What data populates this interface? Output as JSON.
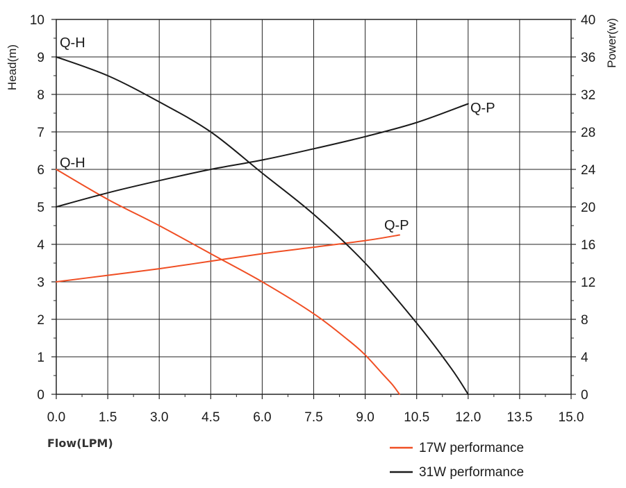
{
  "chart_data": {
    "type": "line",
    "xlabel": "Flow(LPM)",
    "ylabel_left": "Head(m)",
    "ylabel_right": "Power(w)",
    "xlim": [
      0,
      15
    ],
    "ylim_left": [
      0,
      10
    ],
    "ylim_right": [
      0,
      40
    ],
    "x_ticks": [
      "0.0",
      "1.5",
      "3.0",
      "4.5",
      "6.0",
      "7.5",
      "9.0",
      "10.5",
      "12.0",
      "13.5",
      "15.0"
    ],
    "y_ticks_left": [
      "0",
      "1",
      "2",
      "3",
      "4",
      "5",
      "6",
      "7",
      "8",
      "9",
      "10"
    ],
    "y_ticks_right": [
      "0",
      "4",
      "8",
      "12",
      "16",
      "20",
      "24",
      "28",
      "32",
      "36",
      "40"
    ],
    "grid": true,
    "legend_position": "bottom-right",
    "series": [
      {
        "name": "17W performance",
        "color": "#f04e23",
        "curves": [
          {
            "label": "Q-H",
            "axis": "left",
            "x": [
              0,
              1.5,
              3.0,
              4.5,
              6.0,
              7.5,
              8.5,
              9.0,
              9.5,
              9.8,
              10.0
            ],
            "y": [
              6.0,
              5.2,
              4.5,
              3.75,
              3.0,
              2.15,
              1.45,
              1.05,
              0.55,
              0.25,
              0.0
            ]
          },
          {
            "label": "Q-P",
            "axis": "right",
            "x": [
              0,
              1.5,
              3.0,
              4.5,
              6.0,
              7.5,
              9.0,
              10.0
            ],
            "y": [
              12.0,
              12.7,
              13.4,
              14.2,
              15.0,
              15.7,
              16.4,
              17.0
            ]
          }
        ]
      },
      {
        "name": "31W performance",
        "color": "#1a1a1a",
        "curves": [
          {
            "label": "Q-H",
            "axis": "left",
            "x": [
              0,
              1.5,
              3.0,
              4.5,
              6.0,
              7.5,
              9.0,
              10.5,
              11.5,
              12.0
            ],
            "y": [
              9.0,
              8.5,
              7.8,
              7.0,
              5.9,
              4.8,
              3.5,
              1.9,
              0.7,
              0.0
            ]
          },
          {
            "label": "Q-P",
            "axis": "right",
            "x": [
              0,
              1.5,
              3.0,
              4.5,
              6.0,
              7.5,
              9.0,
              10.5,
              12.0
            ],
            "y": [
              20.0,
              21.5,
              22.8,
              24.0,
              25.0,
              26.2,
              27.5,
              29.0,
              31.0
            ]
          }
        ]
      }
    ]
  },
  "annotations": {
    "qh_31w": "Q-H",
    "qh_17w": "Q-H",
    "qp_31w": "Q-P",
    "qp_17w": "Q-P"
  }
}
